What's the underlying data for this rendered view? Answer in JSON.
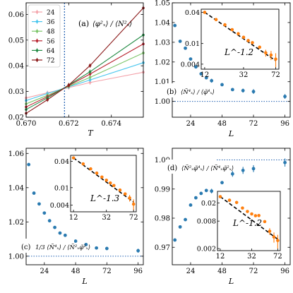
{
  "chart_data": [
    {
      "panel": "a",
      "type": "line",
      "panel_label": "(a)",
      "formula": "⟨φ²ₓ⟩ / ⟨N²ₓ⟩",
      "xlabel": "T",
      "ylabel": "",
      "xlim": [
        0.67,
        0.6755
      ],
      "ylim": [
        0.02,
        0.0645
      ],
      "xticks": [
        0.67,
        0.672,
        0.674
      ],
      "xtick_labels": [
        "0.670",
        "0.672",
        "0.674"
      ],
      "yticks": [
        0.02,
        0.03,
        0.04,
        0.05,
        0.06
      ],
      "ytick_labels": [
        "0.02",
        "0.03",
        "0.04",
        "0.05",
        "0.06"
      ],
      "vline": 0.6718,
      "legend_position": "upper-left",
      "x": [
        0.67,
        0.671,
        0.672,
        0.673,
        0.6755
      ],
      "series": [
        {
          "name": "24",
          "color": "#f4a3ab",
          "values": [
            0.0275,
            0.0295,
            0.0315,
            0.0335,
            0.0375
          ]
        },
        {
          "name": "36",
          "color": "#48c6ee",
          "values": [
            0.0265,
            0.0292,
            0.0318,
            0.0345,
            0.0412
          ]
        },
        {
          "name": "48",
          "color": "#7dc66a",
          "values": [
            0.0252,
            0.0285,
            0.032,
            0.0355,
            0.045
          ]
        },
        {
          "name": "56",
          "color": "#b8232f",
          "values": [
            0.024,
            0.028,
            0.0323,
            0.0368,
            0.0485
          ]
        },
        {
          "name": "64",
          "color": "#238b45",
          "values": [
            0.023,
            0.0275,
            0.0325,
            0.0377,
            0.052
          ]
        },
        {
          "name": "72",
          "color": "#8b1a1a",
          "values": [
            0.0215,
            0.0268,
            0.0325,
            0.0401,
            0.0625
          ]
        }
      ]
    },
    {
      "panel": "b",
      "type": "scatter",
      "panel_label": "(b)",
      "formula": "⟨Ñ⁴ₓ⟩ / ⟨φ̃⁴ₓ⟩",
      "xlabel": "L",
      "ylabel": "",
      "xlim": [
        10,
        100
      ],
      "ylim": [
        0.992,
        1.05
      ],
      "xticks": [
        24,
        48,
        72,
        96
      ],
      "xtick_labels": [
        "24",
        "48",
        "72",
        "96"
      ],
      "yticks": [
        1.0,
        1.01,
        1.02,
        1.03,
        1.04,
        1.05
      ],
      "ytick_labels": [
        "1.00",
        "1.01",
        "1.02",
        "1.03",
        "1.04",
        "1.05"
      ],
      "hline": 1.0,
      "x": [
        12,
        16,
        20,
        24,
        28,
        32,
        36,
        40,
        48,
        56,
        64,
        72,
        96
      ],
      "values": [
        1.0385,
        1.0305,
        1.027,
        1.0215,
        1.0175,
        1.014,
        1.012,
        1.0105,
        1.0085,
        1.006,
        1.0055,
        1.005,
        1.0025
      ],
      "errors": [
        0,
        0,
        0,
        0,
        0,
        0,
        0,
        0.001,
        0,
        0,
        0.001,
        0.0012,
        0.0012
      ],
      "color": "#2a7ab0",
      "inset": {
        "type": "scatter",
        "scale": "log-log",
        "xlim": [
          11,
          78
        ],
        "ylim": [
          0.0032,
          0.046
        ],
        "xticks": [
          12,
          32,
          72
        ],
        "xtick_labels": [
          "12",
          "32",
          "72"
        ],
        "yticks": [
          0.004,
          0.01,
          0.04
        ],
        "ytick_labels": [
          "0.004",
          "0.01",
          "0.04"
        ],
        "fit_label": "L^-1.2",
        "fit_exponent": -1.2,
        "color": "#ff7f0e",
        "x": [
          12,
          16,
          20,
          24,
          28,
          32,
          36,
          40,
          48,
          56,
          64,
          72
        ],
        "values": [
          0.04,
          0.029,
          0.023,
          0.0185,
          0.0155,
          0.0132,
          0.0114,
          0.0104,
          0.0085,
          0.0066,
          0.006,
          0.005
        ],
        "errors": [
          0,
          0,
          0,
          0,
          0,
          0,
          0,
          0,
          0,
          0.001,
          0.0012,
          0.0015
        ]
      }
    },
    {
      "panel": "c",
      "type": "scatter",
      "panel_label": "(c)",
      "formula": "1/3 ⟨Ñ⁴ₓ⟩ / ⟨Ñ²ₓφ̃²ₓ⟩",
      "xlabel": "L",
      "ylabel": "",
      "xlim": [
        10,
        100
      ],
      "ylim": [
        0.995,
        1.063
      ],
      "xticks": [
        24,
        48,
        72,
        96
      ],
      "xtick_labels": [
        "24",
        "48",
        "72",
        "96"
      ],
      "yticks": [
        1.0,
        1.02,
        1.04,
        1.06
      ],
      "ytick_labels": [
        "1.00",
        "1.02",
        "1.04",
        "1.06"
      ],
      "hline": 1.0,
      "x": [
        12,
        16,
        20,
        24,
        28,
        32,
        36,
        40,
        48,
        56,
        64,
        72,
        96
      ],
      "values": [
        1.0535,
        1.0368,
        1.0305,
        1.0252,
        1.0207,
        1.0168,
        1.0135,
        1.0122,
        1.0088,
        1.0068,
        1.0048,
        1.0045,
        1.0032
      ],
      "errors": [
        0,
        0,
        0,
        0,
        0,
        0,
        0,
        0,
        0.0008,
        0,
        0,
        0.001,
        0.0012
      ],
      "color": "#2a7ab0",
      "inset": {
        "type": "scatter",
        "scale": "log-log",
        "xlim": [
          11,
          78
        ],
        "ylim": [
          0.0028,
          0.055
        ],
        "xticks": [
          12,
          32,
          72
        ],
        "xtick_labels": [
          "12",
          "32",
          "72"
        ],
        "yticks": [
          0.004,
          0.01,
          0.04
        ],
        "ytick_labels": [
          "0.004",
          "0.01",
          "0.04"
        ],
        "fit_label": "L^-1.3",
        "fit_exponent": -1.3,
        "color": "#ff7f0e",
        "x": [
          12,
          16,
          20,
          24,
          28,
          32,
          36,
          40,
          48,
          56,
          64,
          72
        ],
        "values": [
          0.048,
          0.035,
          0.027,
          0.0215,
          0.0175,
          0.0148,
          0.0128,
          0.0112,
          0.0088,
          0.0072,
          0.0058,
          0.0042
        ],
        "errors": [
          0,
          0,
          0,
          0,
          0,
          0,
          0,
          0,
          0,
          0,
          0.001,
          0.0012
        ]
      }
    },
    {
      "panel": "d",
      "type": "scatter",
      "panel_label": "(d)",
      "formula": "⟨Ñ²ₓφ̃⁴ₓ⟩ / ⟨Ñ⁴ₓφ̃²ₓ⟩",
      "xlabel": "L",
      "ylabel": "",
      "xlim": [
        10,
        100
      ],
      "ylim": [
        0.964,
        1.004
      ],
      "xticks": [
        24,
        48,
        72,
        96
      ],
      "xtick_labels": [
        "24",
        "48",
        "72",
        "96"
      ],
      "yticks": [
        0.97,
        0.98,
        0.99,
        1.0
      ],
      "ytick_labels": [
        "0.97",
        "0.98",
        "0.99",
        "1.00"
      ],
      "hline": 1.0,
      "x": [
        12,
        16,
        20,
        24,
        28,
        32,
        36,
        40,
        48,
        56,
        64,
        72,
        96
      ],
      "values": [
        0.9725,
        0.977,
        0.9795,
        0.9845,
        0.987,
        0.9885,
        0.9895,
        0.9893,
        0.9922,
        0.9952,
        0.9964,
        0.997,
        0.9991
      ],
      "errors": [
        0,
        0,
        0,
        0,
        0,
        0,
        0,
        0.0008,
        0,
        0.001,
        0.0012,
        0.0012,
        0.0014
      ],
      "color": "#2a7ab0",
      "inset": {
        "type": "scatter",
        "scale": "log-log",
        "xlim": [
          11,
          78
        ],
        "ylim": [
          0.0018,
          0.036
        ],
        "xticks": [
          12,
          32,
          72
        ],
        "xtick_labels": [
          "12",
          "32",
          "72"
        ],
        "yticks": [
          0.002,
          0.008,
          0.02
        ],
        "ytick_labels": [
          "0.002",
          "0.008",
          "0.02"
        ],
        "fit_label": "L^-1.2",
        "fit_exponent": -1.2,
        "color": "#ff7f0e",
        "x": [
          12,
          16,
          20,
          24,
          28,
          32,
          36,
          40,
          48,
          56,
          64,
          72
        ],
        "values": [
          0.0275,
          0.023,
          0.0205,
          0.0155,
          0.013,
          0.0115,
          0.0105,
          0.0106,
          0.0078,
          0.0048,
          0.0036,
          0.003
        ],
        "errors": [
          0,
          0,
          0,
          0,
          0,
          0,
          0,
          0.0008,
          0,
          0.0008,
          0.0009,
          0.001
        ]
      }
    }
  ]
}
